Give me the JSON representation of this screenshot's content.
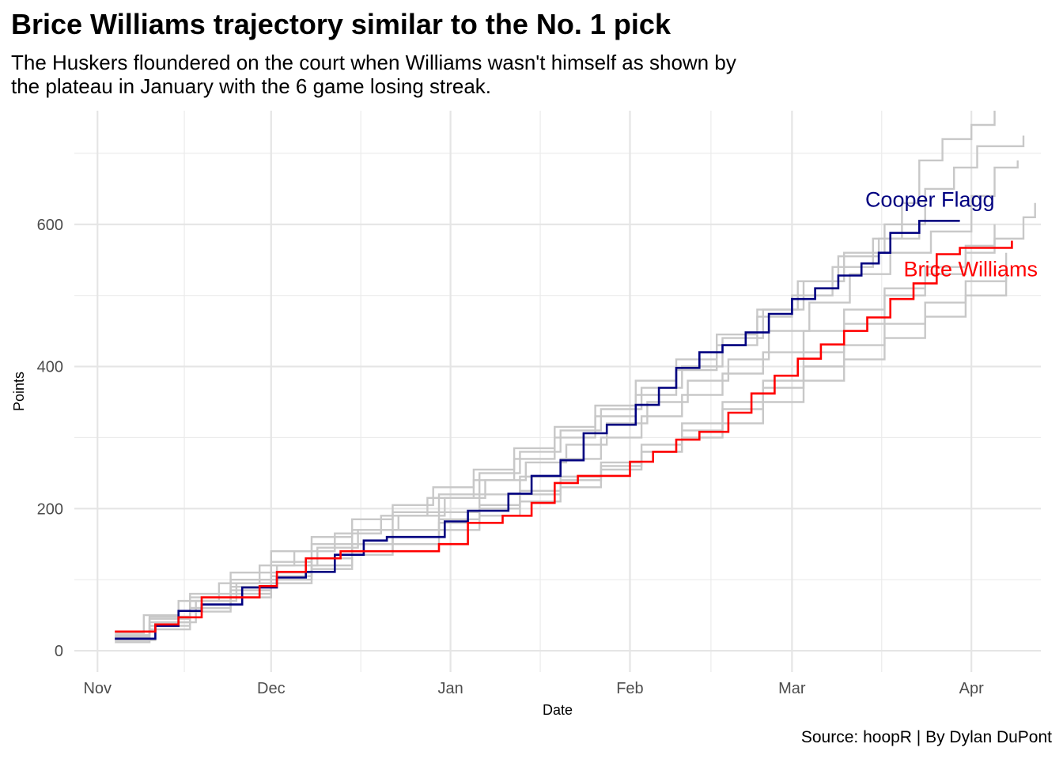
{
  "title": "Brice Williams trajectory similar to the No. 1 pick",
  "subtitle_lines": [
    "The Huskers floundered on the court when Williams wasn't himself as shown by",
    "the plateau in January with the 6 game losing streak."
  ],
  "caption": "Source: hoopR | By Dylan DuPont",
  "chart_data": {
    "type": "line",
    "step": true,
    "xlabel": "Date",
    "ylabel": "Points",
    "x_ticks": [
      {
        "date": "2024-11-01",
        "label": "Nov"
      },
      {
        "date": "2024-12-01",
        "label": "Dec"
      },
      {
        "date": "2025-01-01",
        "label": "Jan"
      },
      {
        "date": "2025-02-01",
        "label": "Feb"
      },
      {
        "date": "2025-03-01",
        "label": "Mar"
      },
      {
        "date": "2025-04-01",
        "label": "Apr"
      }
    ],
    "y_ticks": [
      0,
      200,
      400,
      600
    ],
    "xlim": [
      "2024-10-28",
      "2025-04-13"
    ],
    "ylim": [
      -30,
      760
    ],
    "grid": true,
    "colors": {
      "highlight_williams": "#ff0000",
      "highlight_flagg": "#000080",
      "others": "#c8c8c8"
    },
    "series": [
      {
        "name": "Brice Williams",
        "color": "#ff0000",
        "label": "Brice Williams",
        "points": [
          [
            "2024-11-04",
            27
          ],
          [
            "2024-11-11",
            37
          ],
          [
            "2024-11-15",
            47
          ],
          [
            "2024-11-19",
            75
          ],
          [
            "2024-11-29",
            91
          ],
          [
            "2024-12-02",
            111
          ],
          [
            "2024-12-07",
            130
          ],
          [
            "2024-12-13",
            140
          ],
          [
            "2024-12-30",
            150
          ],
          [
            "2025-01-04",
            180
          ],
          [
            "2025-01-10",
            190
          ],
          [
            "2025-01-15",
            208
          ],
          [
            "2025-01-19",
            236
          ],
          [
            "2025-01-23",
            246
          ],
          [
            "2025-02-01",
            266
          ],
          [
            "2025-02-05",
            280
          ],
          [
            "2025-02-09",
            297
          ],
          [
            "2025-02-13",
            308
          ],
          [
            "2025-02-18",
            335
          ],
          [
            "2025-02-22",
            362
          ],
          [
            "2025-02-26",
            387
          ],
          [
            "2025-03-02",
            411
          ],
          [
            "2025-03-06",
            431
          ],
          [
            "2025-03-10",
            450
          ],
          [
            "2025-03-14",
            469
          ],
          [
            "2025-03-18",
            495
          ],
          [
            "2025-03-22",
            517
          ],
          [
            "2025-03-26",
            558
          ],
          [
            "2025-03-30",
            567
          ],
          [
            "2025-04-01",
            567
          ],
          [
            "2025-04-05",
            567
          ],
          [
            "2025-04-08",
            577
          ]
        ]
      },
      {
        "name": "Cooper Flagg",
        "color": "#000080",
        "label": "Cooper Flagg",
        "points": [
          [
            "2024-11-04",
            17
          ],
          [
            "2024-11-11",
            35
          ],
          [
            "2024-11-15",
            56
          ],
          [
            "2024-11-19",
            65
          ],
          [
            "2024-11-26",
            89
          ],
          [
            "2024-12-02",
            103
          ],
          [
            "2024-12-07",
            111
          ],
          [
            "2024-12-12",
            135
          ],
          [
            "2024-12-17",
            155
          ],
          [
            "2024-12-21",
            160
          ],
          [
            "2024-12-31",
            182
          ],
          [
            "2025-01-04",
            197
          ],
          [
            "2025-01-11",
            221
          ],
          [
            "2025-01-15",
            246
          ],
          [
            "2025-01-20",
            268
          ],
          [
            "2025-01-24",
            306
          ],
          [
            "2025-01-28",
            318
          ],
          [
            "2025-02-02",
            346
          ],
          [
            "2025-02-06",
            370
          ],
          [
            "2025-02-09",
            398
          ],
          [
            "2025-02-13",
            420
          ],
          [
            "2025-02-17",
            430
          ],
          [
            "2025-02-21",
            448
          ],
          [
            "2025-02-25",
            474
          ],
          [
            "2025-03-01",
            495
          ],
          [
            "2025-03-05",
            510
          ],
          [
            "2025-03-09",
            528
          ],
          [
            "2025-03-13",
            545
          ],
          [
            "2025-03-16",
            560
          ],
          [
            "2025-03-18",
            588
          ],
          [
            "2025-03-23",
            605
          ],
          [
            "2025-03-30",
            605
          ]
        ]
      },
      {
        "color": "#c8c8c8",
        "points": [
          [
            "2024-11-04",
            25
          ],
          [
            "2024-11-09",
            50
          ],
          [
            "2024-11-15",
            70
          ],
          [
            "2024-11-22",
            95
          ],
          [
            "2024-11-29",
            120
          ],
          [
            "2024-12-05",
            140
          ],
          [
            "2024-12-12",
            165
          ],
          [
            "2024-12-20",
            190
          ],
          [
            "2024-12-28",
            215
          ],
          [
            "2025-01-05",
            240
          ],
          [
            "2025-01-12",
            270
          ],
          [
            "2025-01-19",
            300
          ],
          [
            "2025-01-26",
            330
          ],
          [
            "2025-02-02",
            360
          ],
          [
            "2025-02-09",
            395
          ],
          [
            "2025-02-16",
            430
          ],
          [
            "2025-02-23",
            470
          ],
          [
            "2025-03-01",
            500
          ],
          [
            "2025-03-08",
            540
          ],
          [
            "2025-03-15",
            580
          ],
          [
            "2025-03-20",
            630
          ],
          [
            "2025-03-23",
            690
          ],
          [
            "2025-03-27",
            720
          ],
          [
            "2025-04-01",
            740
          ],
          [
            "2025-04-05",
            760
          ]
        ]
      },
      {
        "color": "#c8c8c8",
        "points": [
          [
            "2024-11-04",
            20
          ],
          [
            "2024-11-10",
            45
          ],
          [
            "2024-11-17",
            75
          ],
          [
            "2024-11-24",
            100
          ],
          [
            "2024-12-01",
            125
          ],
          [
            "2024-12-08",
            150
          ],
          [
            "2024-12-15",
            170
          ],
          [
            "2024-12-22",
            195
          ],
          [
            "2024-12-30",
            220
          ],
          [
            "2025-01-06",
            250
          ],
          [
            "2025-01-13",
            280
          ],
          [
            "2025-01-20",
            310
          ],
          [
            "2025-01-27",
            340
          ],
          [
            "2025-02-03",
            370
          ],
          [
            "2025-02-10",
            400
          ],
          [
            "2025-02-17",
            440
          ],
          [
            "2025-02-24",
            480
          ],
          [
            "2025-03-03",
            520
          ],
          [
            "2025-03-10",
            560
          ],
          [
            "2025-03-17",
            600
          ],
          [
            "2025-03-24",
            650
          ],
          [
            "2025-03-29",
            680
          ],
          [
            "2025-04-02",
            710
          ],
          [
            "2025-04-10",
            725
          ]
        ]
      },
      {
        "color": "#c8c8c8",
        "points": [
          [
            "2024-11-04",
            15
          ],
          [
            "2024-11-11",
            40
          ],
          [
            "2024-11-18",
            70
          ],
          [
            "2024-11-25",
            95
          ],
          [
            "2024-12-02",
            120
          ],
          [
            "2024-12-09",
            145
          ],
          [
            "2024-12-16",
            170
          ],
          [
            "2024-12-23",
            190
          ],
          [
            "2024-12-31",
            215
          ],
          [
            "2025-01-07",
            240
          ],
          [
            "2025-01-14",
            265
          ],
          [
            "2025-01-21",
            290
          ],
          [
            "2025-01-28",
            320
          ],
          [
            "2025-02-04",
            350
          ],
          [
            "2025-02-11",
            380
          ],
          [
            "2025-02-18",
            410
          ],
          [
            "2025-02-25",
            450
          ],
          [
            "2025-03-04",
            490
          ],
          [
            "2025-03-11",
            530
          ],
          [
            "2025-03-18",
            560
          ],
          [
            "2025-03-25",
            590
          ],
          [
            "2025-04-01",
            640
          ],
          [
            "2025-04-05",
            680
          ],
          [
            "2025-04-09",
            690
          ]
        ]
      },
      {
        "color": "#c8c8c8",
        "points": [
          [
            "2024-11-04",
            22
          ],
          [
            "2024-11-10",
            48
          ],
          [
            "2024-11-17",
            80
          ],
          [
            "2024-11-24",
            110
          ],
          [
            "2024-12-01",
            140
          ],
          [
            "2024-12-08",
            160
          ],
          [
            "2024-12-15",
            185
          ],
          [
            "2024-12-22",
            205
          ],
          [
            "2024-12-29",
            230
          ],
          [
            "2025-01-05",
            255
          ],
          [
            "2025-01-12",
            285
          ],
          [
            "2025-01-19",
            315
          ],
          [
            "2025-01-26",
            345
          ],
          [
            "2025-02-02",
            380
          ],
          [
            "2025-02-09",
            410
          ],
          [
            "2025-02-16",
            445
          ],
          [
            "2025-02-23",
            480
          ],
          [
            "2025-03-02",
            520
          ],
          [
            "2025-03-09",
            555
          ],
          [
            "2025-03-16",
            580
          ],
          [
            "2025-03-23",
            600
          ]
        ]
      },
      {
        "color": "#c8c8c8",
        "points": [
          [
            "2024-11-04",
            18
          ],
          [
            "2024-11-10",
            40
          ],
          [
            "2024-11-17",
            60
          ],
          [
            "2024-11-24",
            85
          ],
          [
            "2024-12-01",
            105
          ],
          [
            "2024-12-08",
            130
          ],
          [
            "2024-12-15",
            150
          ],
          [
            "2024-12-22",
            170
          ],
          [
            "2024-12-30",
            195
          ],
          [
            "2025-01-06",
            220
          ],
          [
            "2025-01-13",
            245
          ],
          [
            "2025-01-20",
            270
          ],
          [
            "2025-01-27",
            300
          ],
          [
            "2025-02-03",
            330
          ],
          [
            "2025-02-10",
            360
          ],
          [
            "2025-02-17",
            390
          ],
          [
            "2025-02-24",
            420
          ],
          [
            "2025-03-03",
            450
          ],
          [
            "2025-03-10",
            480
          ],
          [
            "2025-03-17",
            510
          ],
          [
            "2025-03-24",
            540
          ],
          [
            "2025-03-31",
            560
          ],
          [
            "2025-04-05",
            580
          ],
          [
            "2025-04-10",
            610
          ],
          [
            "2025-04-12",
            630
          ]
        ]
      },
      {
        "color": "#c8c8c8",
        "points": [
          [
            "2024-11-04",
            12
          ],
          [
            "2024-11-10",
            30
          ],
          [
            "2024-11-17",
            55
          ],
          [
            "2024-11-24",
            75
          ],
          [
            "2024-12-01",
            95
          ],
          [
            "2024-12-08",
            115
          ],
          [
            "2024-12-15",
            135
          ],
          [
            "2024-12-22",
            150
          ],
          [
            "2024-12-30",
            170
          ],
          [
            "2025-01-06",
            190
          ],
          [
            "2025-01-13",
            210
          ],
          [
            "2025-01-20",
            230
          ],
          [
            "2025-01-27",
            255
          ],
          [
            "2025-02-03",
            280
          ],
          [
            "2025-02-10",
            310
          ],
          [
            "2025-02-17",
            340
          ],
          [
            "2025-02-24",
            370
          ],
          [
            "2025-03-03",
            400
          ],
          [
            "2025-03-10",
            430
          ],
          [
            "2025-03-17",
            460
          ],
          [
            "2025-03-24",
            490
          ],
          [
            "2025-03-31",
            520
          ],
          [
            "2025-04-07",
            560
          ]
        ]
      },
      {
        "color": "#c8c8c8",
        "points": [
          [
            "2024-11-04",
            15
          ],
          [
            "2024-11-10",
            35
          ],
          [
            "2024-11-17",
            60
          ],
          [
            "2024-11-24",
            80
          ],
          [
            "2024-12-01",
            100
          ],
          [
            "2024-12-08",
            120
          ],
          [
            "2024-12-15",
            140
          ],
          [
            "2024-12-22",
            160
          ],
          [
            "2024-12-30",
            180
          ],
          [
            "2025-01-06",
            200
          ],
          [
            "2025-01-13",
            220
          ],
          [
            "2025-01-20",
            240
          ],
          [
            "2025-01-27",
            260
          ],
          [
            "2025-02-03",
            280
          ],
          [
            "2025-02-10",
            300
          ],
          [
            "2025-02-17",
            320
          ],
          [
            "2025-02-24",
            350
          ],
          [
            "2025-03-03",
            380
          ],
          [
            "2025-03-10",
            410
          ],
          [
            "2025-03-17",
            440
          ],
          [
            "2025-03-24",
            470
          ],
          [
            "2025-03-31",
            500
          ],
          [
            "2025-04-07",
            530
          ]
        ]
      },
      {
        "color": "#c8c8c8",
        "points": [
          [
            "2024-11-04",
            20
          ],
          [
            "2024-11-10",
            45
          ],
          [
            "2024-11-17",
            70
          ],
          [
            "2024-11-24",
            90
          ],
          [
            "2024-12-01",
            110
          ],
          [
            "2024-12-08",
            130
          ],
          [
            "2024-12-15",
            150
          ],
          [
            "2024-12-22",
            170
          ],
          [
            "2024-12-30",
            185
          ],
          [
            "2025-01-06",
            205
          ],
          [
            "2025-01-13",
            225
          ],
          [
            "2025-01-20",
            245
          ],
          [
            "2025-01-27",
            265
          ],
          [
            "2025-02-03",
            290
          ],
          [
            "2025-02-10",
            320
          ],
          [
            "2025-02-17",
            350
          ],
          [
            "2025-02-24",
            380
          ],
          [
            "2025-03-03",
            420
          ],
          [
            "2025-03-10",
            460
          ],
          [
            "2025-03-17",
            500
          ],
          [
            "2025-03-24",
            530
          ],
          [
            "2025-03-31",
            570
          ],
          [
            "2025-04-05",
            600
          ]
        ]
      }
    ]
  }
}
